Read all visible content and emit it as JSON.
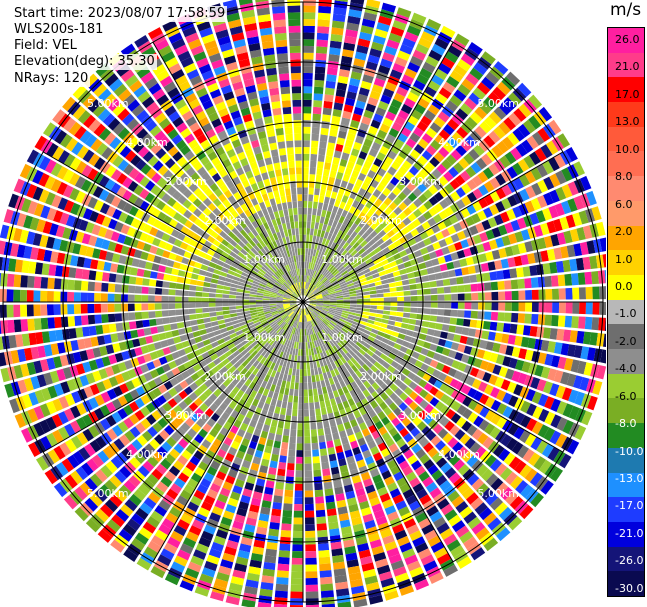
{
  "header": {
    "start_time": "Start time: 2023/08/07 17:58:59",
    "instrument": "WLS200s-181",
    "field": "Field: VEL",
    "elevation": "Elevation(deg): 35.30",
    "nrays": "NRays: 120"
  },
  "colorbar": {
    "unit": "m/s",
    "ticks": [
      "26.0",
      "21.0",
      "17.0",
      "13.0",
      "10.0",
      "8.0",
      "6.0",
      "2.0",
      "1.0",
      "0.0",
      "-1.0",
      "-2.0",
      "-4.0",
      "-6.0",
      "-8.0",
      "-10.0",
      "-13.0",
      "-17.0",
      "-21.0",
      "-26.0",
      "-30.0"
    ],
    "colors": [
      "#ff1fa0",
      "#ff3c8a",
      "#ff0000",
      "#ff3a1a",
      "#ff5a3a",
      "#ff6e52",
      "#ff8a70",
      "#ff9a6a",
      "#ffa500",
      "#ffd200",
      "#ffff00",
      "#b8b8b8",
      "#6e6e6e",
      "#8e8e8e",
      "#9acd32",
      "#7aae24",
      "#228b22",
      "#1e7ab0",
      "#1e90ff",
      "#1e3cff",
      "#0000dd",
      "#141478",
      "#0a0a50"
    ]
  },
  "rings": {
    "labels": [
      "1.00km",
      "2.00km",
      "3.00km",
      "4.00km",
      "5.00km"
    ]
  }
}
